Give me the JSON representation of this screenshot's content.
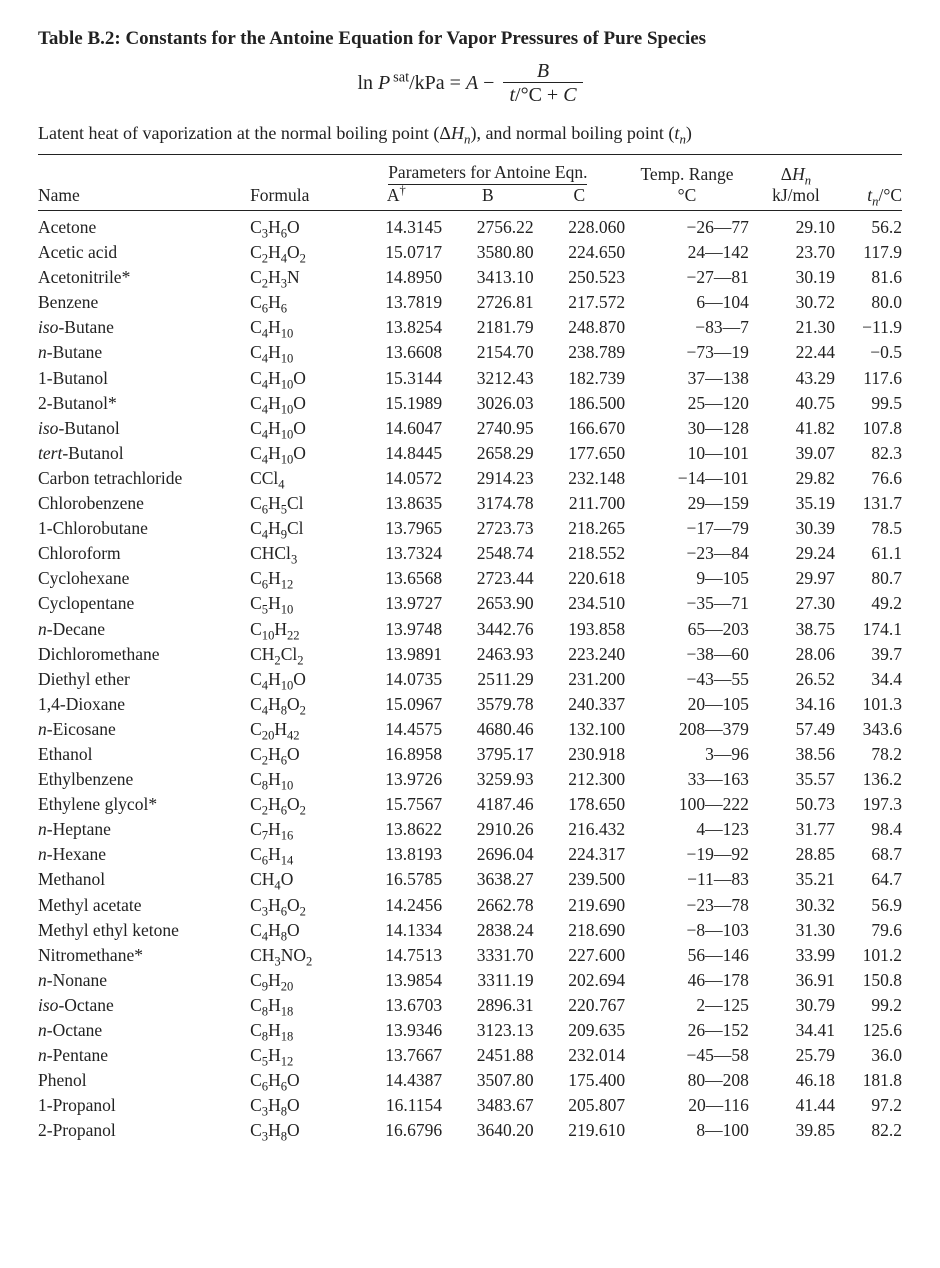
{
  "title": "Table B.2: Constants for the Antoine Equation for Vapor Pressures of Pure Species",
  "equation": {
    "lhs_html": "ln <span class='italic'>P</span><sup> sat</sup>/kPa",
    "rhs_A_html": "<span class='italic'>A</span>",
    "num_html": "<span class='italic'>B</span>",
    "den_html": "<span class='italic'>t</span>/°C + <span class='italic'>C</span>"
  },
  "subtitle_html": "Latent heat of vaporization at the normal boiling point (Δ<span class='italic'>H<sub>n</sub></span>), and normal boiling point (<span class='italic'>t<sub>n</sub></span>)",
  "headers": {
    "param_group": "Parameters for Antoine Eqn.",
    "name": "Name",
    "formula": "Formula",
    "A_html": "A<sup>†</sup>",
    "B": "B",
    "C": "C",
    "temp_range_html": "Temp. Range<br>°C",
    "dHn_html": "Δ<span class='italic'>H<sub>n</sub></span><br>kJ/mol",
    "tn_html": "<span class='italic'>t<sub>n</sub></span>/°C"
  },
  "rows": [
    {
      "name": "Acetone",
      "formula_html": "C<sub>3</sub>H<sub>6</sub>O",
      "A": "14.3145",
      "B": "2756.22",
      "C": "228.060",
      "range": "−26—77",
      "dH": "29.10",
      "tn": "56.2"
    },
    {
      "name": "Acetic acid",
      "formula_html": "C<sub>2</sub>H<sub>4</sub>O<sub>2</sub>",
      "A": "15.0717",
      "B": "3580.80",
      "C": "224.650",
      "range": "24—142",
      "dH": "23.70",
      "tn": "117.9"
    },
    {
      "name": "Acetonitrile*",
      "formula_html": "C<sub>2</sub>H<sub>3</sub>N",
      "A": "14.8950",
      "B": "3413.10",
      "C": "250.523",
      "range": "−27—81",
      "dH": "30.19",
      "tn": "81.6"
    },
    {
      "name": "Benzene",
      "formula_html": "C<sub>6</sub>H<sub>6</sub>",
      "A": "13.7819",
      "B": "2726.81",
      "C": "217.572",
      "range": "6—104",
      "dH": "30.72",
      "tn": "80.0"
    },
    {
      "name_html": "<span class='italic'>iso</span>-Butane",
      "formula_html": "C<sub>4</sub>H<sub>10</sub>",
      "A": "13.8254",
      "B": "2181.79",
      "C": "248.870",
      "range": "−83—7",
      "dH": "21.30",
      "tn": "−11.9"
    },
    {
      "name_html": "<span class='italic'>n</span>-Butane",
      "formula_html": "C<sub>4</sub>H<sub>10</sub>",
      "A": "13.6608",
      "B": "2154.70",
      "C": "238.789",
      "range": "−73—19",
      "dH": "22.44",
      "tn": "−0.5"
    },
    {
      "name": "1-Butanol",
      "formula_html": "C<sub>4</sub>H<sub>10</sub>O",
      "A": "15.3144",
      "B": "3212.43",
      "C": "182.739",
      "range": "37—138",
      "dH": "43.29",
      "tn": "117.6"
    },
    {
      "name": "2-Butanol*",
      "formula_html": "C<sub>4</sub>H<sub>10</sub>O",
      "A": "15.1989",
      "B": "3026.03",
      "C": "186.500",
      "range": "25—120",
      "dH": "40.75",
      "tn": "99.5"
    },
    {
      "name_html": "<span class='italic'>iso</span>-Butanol",
      "formula_html": "C<sub>4</sub>H<sub>10</sub>O",
      "A": "14.6047",
      "B": "2740.95",
      "C": "166.670",
      "range": "30—128",
      "dH": "41.82",
      "tn": "107.8"
    },
    {
      "name_html": "<span class='italic'>tert</span>-Butanol",
      "formula_html": "C<sub>4</sub>H<sub>10</sub>O",
      "A": "14.8445",
      "B": "2658.29",
      "C": "177.650",
      "range": "10—101",
      "dH": "39.07",
      "tn": "82.3"
    },
    {
      "name": "Carbon tetrachloride",
      "formula_html": "CCl<sub>4</sub>",
      "A": "14.0572",
      "B": "2914.23",
      "C": "232.148",
      "range": "−14—101",
      "dH": "29.82",
      "tn": "76.6"
    },
    {
      "name": "Chlorobenzene",
      "formula_html": "C<sub>6</sub>H<sub>5</sub>Cl",
      "A": "13.8635",
      "B": "3174.78",
      "C": "211.700",
      "range": "29—159",
      "dH": "35.19",
      "tn": "131.7"
    },
    {
      "name": "1-Chlorobutane",
      "formula_html": "C<sub>4</sub>H<sub>9</sub>Cl",
      "A": "13.7965",
      "B": "2723.73",
      "C": "218.265",
      "range": "−17—79",
      "dH": "30.39",
      "tn": "78.5"
    },
    {
      "name": "Chloroform",
      "formula_html": "CHCl<sub>3</sub>",
      "A": "13.7324",
      "B": "2548.74",
      "C": "218.552",
      "range": "−23—84",
      "dH": "29.24",
      "tn": "61.1"
    },
    {
      "name": "Cyclohexane",
      "formula_html": "C<sub>6</sub>H<sub>12</sub>",
      "A": "13.6568",
      "B": "2723.44",
      "C": "220.618",
      "range": "9—105",
      "dH": "29.97",
      "tn": "80.7"
    },
    {
      "name": "Cyclopentane",
      "formula_html": "C<sub>5</sub>H<sub>10</sub>",
      "A": "13.9727",
      "B": "2653.90",
      "C": "234.510",
      "range": "−35—71",
      "dH": "27.30",
      "tn": "49.2"
    },
    {
      "name_html": "<span class='italic'>n</span>-Decane",
      "formula_html": "C<sub>10</sub>H<sub>22</sub>",
      "A": "13.9748",
      "B": "3442.76",
      "C": "193.858",
      "range": "65—203",
      "dH": "38.75",
      "tn": "174.1"
    },
    {
      "name": "Dichloromethane",
      "formula_html": "CH<sub>2</sub>Cl<sub>2</sub>",
      "A": "13.9891",
      "B": "2463.93",
      "C": "223.240",
      "range": "−38—60",
      "dH": "28.06",
      "tn": "39.7"
    },
    {
      "name": "Diethyl ether",
      "formula_html": "C<sub>4</sub>H<sub>10</sub>O",
      "A": "14.0735",
      "B": "2511.29",
      "C": "231.200",
      "range": "−43—55",
      "dH": "26.52",
      "tn": "34.4"
    },
    {
      "name": "1,4-Dioxane",
      "formula_html": "C<sub>4</sub>H<sub>8</sub>O<sub>2</sub>",
      "A": "15.0967",
      "B": "3579.78",
      "C": "240.337",
      "range": "20—105",
      "dH": "34.16",
      "tn": "101.3"
    },
    {
      "name_html": "<span class='italic'>n</span>-Eicosane",
      "formula_html": "C<sub>20</sub>H<sub>42</sub>",
      "A": "14.4575",
      "B": "4680.46",
      "C": "132.100",
      "range": "208—379",
      "dH": "57.49",
      "tn": "343.6"
    },
    {
      "name": "Ethanol",
      "formula_html": "C<sub>2</sub>H<sub>6</sub>O",
      "A": "16.8958",
      "B": "3795.17",
      "C": "230.918",
      "range": "3—96",
      "dH": "38.56",
      "tn": "78.2"
    },
    {
      "name": "Ethylbenzene",
      "formula_html": "C<sub>8</sub>H<sub>10</sub>",
      "A": "13.9726",
      "B": "3259.93",
      "C": "212.300",
      "range": "33—163",
      "dH": "35.57",
      "tn": "136.2"
    },
    {
      "name": "Ethylene glycol*",
      "formula_html": "C<sub>2</sub>H<sub>6</sub>O<sub>2</sub>",
      "A": "15.7567",
      "B": "4187.46",
      "C": "178.650",
      "range": "100—222",
      "dH": "50.73",
      "tn": "197.3"
    },
    {
      "name_html": "<span class='italic'>n</span>-Heptane",
      "formula_html": "C<sub>7</sub>H<sub>16</sub>",
      "A": "13.8622",
      "B": "2910.26",
      "C": "216.432",
      "range": "4—123",
      "dH": "31.77",
      "tn": "98.4"
    },
    {
      "name_html": "<span class='italic'>n</span>-Hexane",
      "formula_html": "C<sub>6</sub>H<sub>14</sub>",
      "A": "13.8193",
      "B": "2696.04",
      "C": "224.317",
      "range": "−19—92",
      "dH": "28.85",
      "tn": "68.7"
    },
    {
      "name": "Methanol",
      "formula_html": "CH<sub>4</sub>O",
      "A": "16.5785",
      "B": "3638.27",
      "C": "239.500",
      "range": "−11—83",
      "dH": "35.21",
      "tn": "64.7"
    },
    {
      "name": "Methyl acetate",
      "formula_html": "C<sub>3</sub>H<sub>6</sub>O<sub>2</sub>",
      "A": "14.2456",
      "B": "2662.78",
      "C": "219.690",
      "range": "−23—78",
      "dH": "30.32",
      "tn": "56.9"
    },
    {
      "name": "Methyl ethyl ketone",
      "formula_html": "C<sub>4</sub>H<sub>8</sub>O",
      "A": "14.1334",
      "B": "2838.24",
      "C": "218.690",
      "range": "−8—103",
      "dH": "31.30",
      "tn": "79.6"
    },
    {
      "name": "Nitromethane*",
      "formula_html": "CH<sub>3</sub>NO<sub>2</sub>",
      "A": "14.7513",
      "B": "3331.70",
      "C": "227.600",
      "range": "56—146",
      "dH": "33.99",
      "tn": "101.2"
    },
    {
      "name_html": "<span class='italic'>n</span>-Nonane",
      "formula_html": "C<sub>9</sub>H<sub>20</sub>",
      "A": "13.9854",
      "B": "3311.19",
      "C": "202.694",
      "range": "46—178",
      "dH": "36.91",
      "tn": "150.8"
    },
    {
      "name_html": "<span class='italic'>iso</span>-Octane",
      "formula_html": "C<sub>8</sub>H<sub>18</sub>",
      "A": "13.6703",
      "B": "2896.31",
      "C": "220.767",
      "range": "2—125",
      "dH": "30.79",
      "tn": "99.2"
    },
    {
      "name_html": "<span class='italic'>n</span>-Octane",
      "formula_html": "C<sub>8</sub>H<sub>18</sub>",
      "A": "13.9346",
      "B": "3123.13",
      "C": "209.635",
      "range": "26—152",
      "dH": "34.41",
      "tn": "125.6"
    },
    {
      "name_html": "<span class='italic'>n</span>-Pentane",
      "formula_html": "C<sub>5</sub>H<sub>12</sub>",
      "A": "13.7667",
      "B": "2451.88",
      "C": "232.014",
      "range": "−45—58",
      "dH": "25.79",
      "tn": "36.0"
    },
    {
      "name": "Phenol",
      "formula_html": "C<sub>6</sub>H<sub>6</sub>O",
      "A": "14.4387",
      "B": "3507.80",
      "C": "175.400",
      "range": "80—208",
      "dH": "46.18",
      "tn": "181.8"
    },
    {
      "name": "1-Propanol",
      "formula_html": "C<sub>3</sub>H<sub>8</sub>O",
      "A": "16.1154",
      "B": "3483.67",
      "C": "205.807",
      "range": "20—116",
      "dH": "41.44",
      "tn": "97.2"
    },
    {
      "name": "2-Propanol",
      "formula_html": "C<sub>3</sub>H<sub>8</sub>O",
      "A": "16.6796",
      "B": "3640.20",
      "C": "219.610",
      "range": "8—100",
      "dH": "39.85",
      "tn": "82.2"
    }
  ]
}
